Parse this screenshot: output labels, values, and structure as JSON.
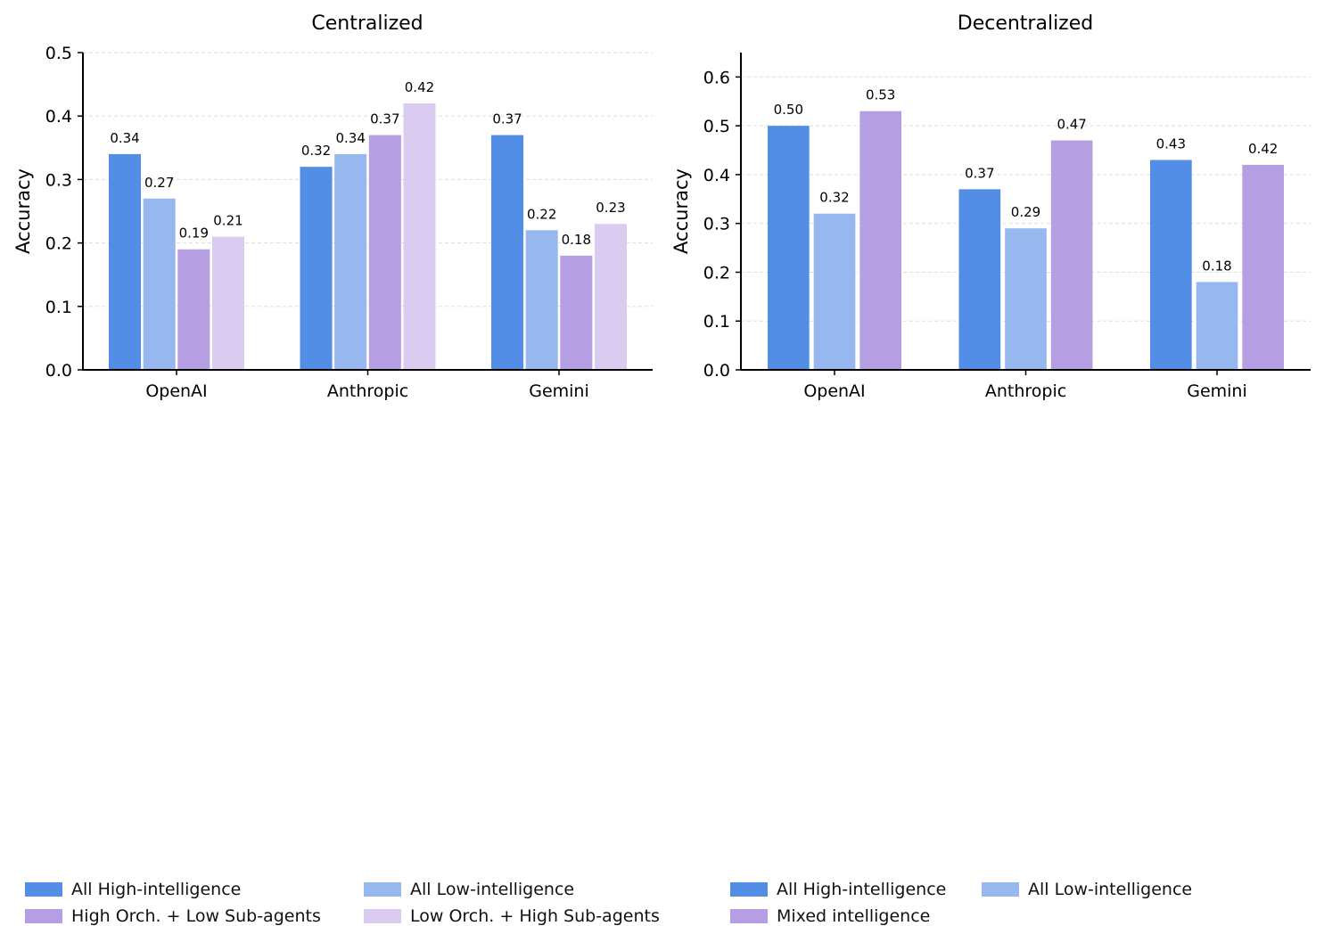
{
  "chart_data": [
    {
      "type": "bar",
      "title": "Centralized",
      "xlabel": "",
      "ylabel": "Accuracy",
      "ylim": [
        0,
        0.5
      ],
      "yticks": [
        "0.0",
        "0.1",
        "0.2",
        "0.3",
        "0.4",
        "0.5"
      ],
      "categories": [
        "OpenAI",
        "Anthropic",
        "Gemini"
      ],
      "grid": "horizontal-dashed",
      "series": [
        {
          "name": "All High-intelligence",
          "color": "#528ee6",
          "values": [
            0.34,
            0.32,
            0.37
          ],
          "labels": [
            "0.34",
            "0.32",
            "0.37"
          ]
        },
        {
          "name": "All Low-intelligence",
          "color": "#97b7ef",
          "values": [
            0.27,
            0.34,
            0.22
          ],
          "labels": [
            "0.27",
            "0.34",
            "0.22"
          ]
        },
        {
          "name": "High Orch. + Low Sub-agents",
          "color": "#b59ee1",
          "values": [
            0.19,
            0.37,
            0.18
          ],
          "labels": [
            "0.19",
            "0.37",
            "0.18"
          ]
        },
        {
          "name": "Low Orch. + High Sub-agents",
          "color": "#d9ccf0",
          "values": [
            0.21,
            0.42,
            0.23
          ],
          "labels": [
            "0.21",
            "0.42",
            "0.23"
          ]
        }
      ]
    },
    {
      "type": "bar",
      "title": "Decentralized",
      "xlabel": "",
      "ylabel": "Accuracy",
      "ylim": [
        0,
        0.65
      ],
      "yticks": [
        "0.0",
        "0.1",
        "0.2",
        "0.3",
        "0.4",
        "0.5",
        "0.6"
      ],
      "categories": [
        "OpenAI",
        "Anthropic",
        "Gemini"
      ],
      "grid": "horizontal-dashed",
      "series": [
        {
          "name": "All High-intelligence",
          "color": "#528ee6",
          "values": [
            0.5,
            0.37,
            0.43
          ],
          "labels": [
            "0.50",
            "0.37",
            "0.43"
          ]
        },
        {
          "name": "All Low-intelligence",
          "color": "#97b7ef",
          "values": [
            0.32,
            0.29,
            0.18
          ],
          "labels": [
            "0.32",
            "0.29",
            "0.18"
          ]
        },
        {
          "name": "Mixed intelligence",
          "color": "#b59ee1",
          "values": [
            0.53,
            0.47,
            0.42
          ],
          "labels": [
            "0.53",
            "0.47",
            "0.42"
          ]
        }
      ]
    }
  ],
  "legends": {
    "centralized": [
      "All High-intelligence",
      "All Low-intelligence",
      "High Orch. + Low Sub-agents",
      "Low Orch. + High Sub-agents"
    ],
    "decentralized": [
      "All High-intelligence",
      "All Low-intelligence",
      "Mixed intelligence"
    ]
  }
}
